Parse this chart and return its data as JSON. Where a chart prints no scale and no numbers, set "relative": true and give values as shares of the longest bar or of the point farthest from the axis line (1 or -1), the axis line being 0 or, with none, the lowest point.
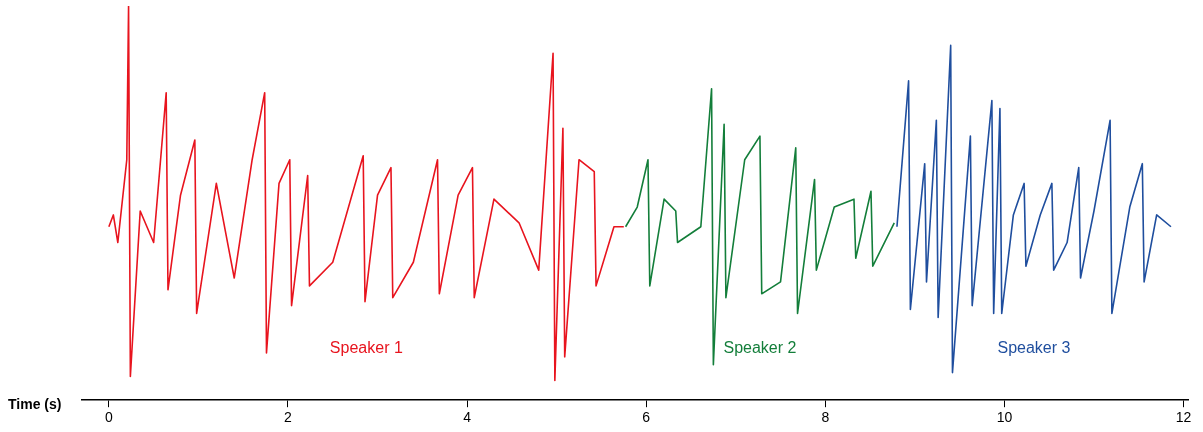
{
  "chart_data": {
    "type": "line",
    "relative": true,
    "xlabel": "Time (s)",
    "xlim": [
      -0.3,
      12.05
    ],
    "xticks": [
      0,
      2,
      4,
      6,
      8,
      10,
      12
    ],
    "tick_labels": "x",
    "grid": false,
    "legend": false,
    "marker": "none",
    "line_style": "solid",
    "series": [
      {
        "name": "Speaker 1",
        "color": "#e8141e",
        "x": [
          0,
          0.05,
          0.1,
          0.2,
          0.22,
          0.24,
          0.35,
          0.5,
          0.64,
          0.66,
          0.8,
          0.96,
          0.98,
          1.2,
          1.4,
          1.6,
          1.74,
          1.76,
          1.9,
          2.02,
          2.04,
          2.22,
          2.24,
          2.5,
          2.84,
          2.86,
          3.0,
          3.15,
          3.17,
          3.4,
          3.67,
          3.69,
          3.9,
          4.06,
          4.08,
          4.3,
          4.58,
          4.8,
          4.96,
          4.98,
          5.07,
          5.09,
          5.25,
          5.42,
          5.44,
          5.64,
          5.75
        ],
        "values": [
          0.44,
          0.47,
          0.4,
          0.61,
          1,
          0.06,
          0.48,
          0.4,
          0.78,
          0.28,
          0.52,
          0.66,
          0.22,
          0.55,
          0.31,
          0.61,
          0.78,
          0.12,
          0.55,
          0.61,
          0.24,
          0.57,
          0.29,
          0.35,
          0.62,
          0.25,
          0.52,
          0.59,
          0.26,
          0.35,
          0.61,
          0.27,
          0.52,
          0.59,
          0.26,
          0.51,
          0.45,
          0.33,
          0.88,
          0.05,
          0.69,
          0.11,
          0.61,
          0.58,
          0.29,
          0.44,
          0.44
        ]
      },
      {
        "name": "Speaker 2",
        "color": "#137e3a",
        "x": [
          5.77,
          5.9,
          6.02,
          6.04,
          6.2,
          6.33,
          6.35,
          6.61,
          6.73,
          6.75,
          6.87,
          6.89,
          7.1,
          7.27,
          7.29,
          7.5,
          7.67,
          7.69,
          7.88,
          7.9,
          8.1,
          8.32,
          8.34,
          8.51,
          8.53,
          8.77
        ],
        "values": [
          0.44,
          0.49,
          0.61,
          0.29,
          0.51,
          0.48,
          0.4,
          0.44,
          0.79,
          0.09,
          0.7,
          0.26,
          0.61,
          0.67,
          0.27,
          0.3,
          0.64,
          0.22,
          0.56,
          0.33,
          0.49,
          0.51,
          0.36,
          0.53,
          0.34,
          0.45
        ]
      },
      {
        "name": "Speaker 3",
        "color": "#1f4e9e",
        "x": [
          8.8,
          8.93,
          8.95,
          9.11,
          9.13,
          9.24,
          9.26,
          9.4,
          9.42,
          9.62,
          9.64,
          9.86,
          9.88,
          9.95,
          9.97,
          10.1,
          10.22,
          10.24,
          10.4,
          10.53,
          10.55,
          10.7,
          10.83,
          10.85,
          11.0,
          11.18,
          11.2,
          11.4,
          11.54,
          11.56,
          11.7,
          11.86
        ],
        "values": [
          0.44,
          0.81,
          0.23,
          0.6,
          0.3,
          0.71,
          0.21,
          0.9,
          0.07,
          0.67,
          0.24,
          0.76,
          0.22,
          0.74,
          0.22,
          0.47,
          0.55,
          0.34,
          0.47,
          0.55,
          0.33,
          0.4,
          0.59,
          0.31,
          0.48,
          0.71,
          0.22,
          0.49,
          0.6,
          0.3,
          0.47,
          0.44
        ]
      }
    ]
  }
}
